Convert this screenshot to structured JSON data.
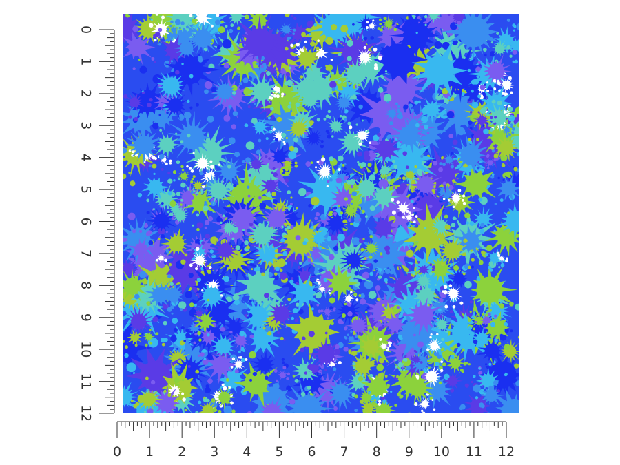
{
  "ruler": {
    "unit_labels": [
      "0",
      "1",
      "2",
      "3",
      "4",
      "5",
      "6",
      "7",
      "8",
      "9",
      "10",
      "11",
      "12"
    ],
    "color": "#333333"
  },
  "pattern": {
    "name": "paint-splatter",
    "background": "#2a4cf0",
    "palette": [
      "#1a2ff0",
      "#3a8ef0",
      "#38b8f0",
      "#5cd0c0",
      "#8cd23c",
      "#a4cc34",
      "#7a5cf0",
      "#5a3be6",
      "#ffffff"
    ]
  }
}
